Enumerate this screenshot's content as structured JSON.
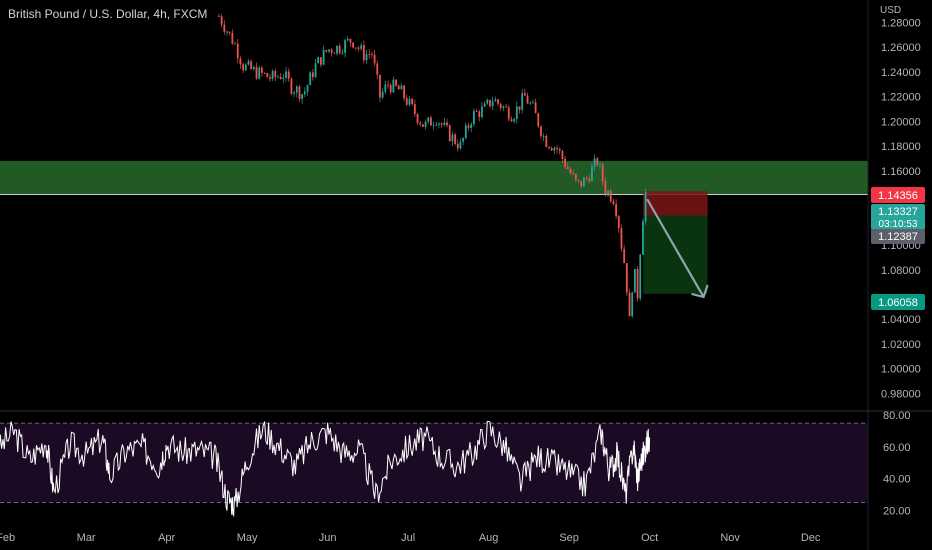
{
  "header": {
    "symbol_title": "British Pound / U.S. Dollar, 4h, FXCM",
    "currency": "USD"
  },
  "colors": {
    "background": "#000000",
    "candle_up": "#26a69a",
    "candle_down": "#ef5350",
    "zone": "#2e7d32",
    "target_zone": "#0a3a12",
    "stop_zone": "#7a1616",
    "arrow": "#90a4ae",
    "rsi_line": "#ffffff",
    "rsi_band": "#1c0a24",
    "stop_badge": "#f23645",
    "price_badge": "#26a69a",
    "entry_badge": "#5d606b",
    "target_badge": "#089981"
  },
  "chart_data": [
    {
      "type": "candlestick",
      "title": "British Pound / U.S. Dollar, 4h, FXCM",
      "ylabel": "USD",
      "ylim": [
        0.965,
        1.29
      ],
      "y_ticks": [
        "1.28000",
        "1.26000",
        "1.24000",
        "1.22000",
        "1.20000",
        "1.18000",
        "1.16000",
        "1.10000",
        "1.08000",
        "1.04000",
        "1.02000",
        "1.00000",
        "0.98000"
      ],
      "y_tick_values": [
        1.28,
        1.26,
        1.24,
        1.22,
        1.2,
        1.18,
        1.16,
        1.1,
        1.08,
        1.04,
        1.02,
        1.0,
        0.98
      ],
      "x_ticks": [
        "Feb",
        "Mar",
        "Apr",
        "May",
        "Jun",
        "Jul",
        "Aug",
        "Sep",
        "Oct",
        "Nov",
        "Dec"
      ],
      "x_tick_months": [
        2,
        3,
        4,
        5,
        6,
        7,
        8,
        9,
        10,
        11,
        12
      ],
      "price_path": {
        "months": [
          4.65,
          4.85,
          4.95,
          5.1,
          5.3,
          5.45,
          5.55,
          5.7,
          5.85,
          6.0,
          6.15,
          6.3,
          6.45,
          6.55,
          6.65,
          6.75,
          6.9,
          7.05,
          7.2,
          7.35,
          7.5,
          7.65,
          7.8,
          7.95,
          8.05,
          8.15,
          8.3,
          8.45,
          8.55,
          8.7,
          8.85,
          9.0,
          9.1,
          9.2,
          9.35,
          9.45,
          9.55,
          9.6,
          9.65,
          9.7,
          9.75,
          9.8,
          9.85,
          9.9,
          9.95
        ],
        "prices": [
          1.285,
          1.262,
          1.245,
          1.24,
          1.235,
          1.238,
          1.228,
          1.222,
          1.245,
          1.258,
          1.26,
          1.266,
          1.254,
          1.255,
          1.22,
          1.23,
          1.225,
          1.21,
          1.196,
          1.203,
          1.19,
          1.18,
          1.205,
          1.21,
          1.218,
          1.213,
          1.205,
          1.22,
          1.21,
          1.185,
          1.178,
          1.16,
          1.148,
          1.152,
          1.168,
          1.145,
          1.138,
          1.125,
          1.1,
          1.08,
          1.038,
          1.082,
          1.06,
          1.115,
          1.142
        ]
      }
    },
    {
      "type": "line",
      "name": "RSI",
      "ylim": [
        14,
        82
      ],
      "y_ticks": [
        "80.00",
        "60.00",
        "40.00",
        "20.00"
      ],
      "y_tick_values": [
        80,
        60,
        40,
        20
      ],
      "band": [
        25,
        75
      ],
      "x_months": [
        1.9,
        2.1,
        2.3,
        2.5,
        2.6,
        2.8,
        3.0,
        3.2,
        3.3,
        3.5,
        3.7,
        3.9,
        4.0,
        4.2,
        4.4,
        4.6,
        4.75,
        4.85,
        5.0,
        5.2,
        5.4,
        5.6,
        5.8,
        6.0,
        6.2,
        6.4,
        6.6,
        6.8,
        7.0,
        7.2,
        7.4,
        7.6,
        7.8,
        8.0,
        8.2,
        8.4,
        8.6,
        8.8,
        9.0,
        9.2,
        9.4,
        9.5,
        9.6,
        9.7,
        9.8,
        9.85,
        9.9,
        9.95,
        10.0
      ],
      "values": [
        58,
        70,
        52,
        64,
        32,
        62,
        55,
        66,
        42,
        58,
        60,
        48,
        62,
        57,
        58,
        54,
        28,
        24,
        52,
        72,
        60,
        48,
        64,
        70,
        56,
        58,
        30,
        52,
        60,
        66,
        54,
        48,
        56,
        72,
        60,
        38,
        54,
        50,
        44,
        36,
        70,
        45,
        55,
        30,
        62,
        40,
        52,
        60,
        66
      ]
    }
  ],
  "trade": {
    "stop_price": 1.14356,
    "entry_price": 1.12387,
    "target_price": 1.06058,
    "current_price": 1.13327,
    "start_month": 9.92,
    "end_month": 10.72,
    "zone_top": 1.168,
    "zone_bottom": 1.1408
  },
  "badges": {
    "stop": "1.14356",
    "current": "1.13327",
    "countdown": "03:10:53",
    "entry": "1.12387",
    "target": "1.06058"
  }
}
